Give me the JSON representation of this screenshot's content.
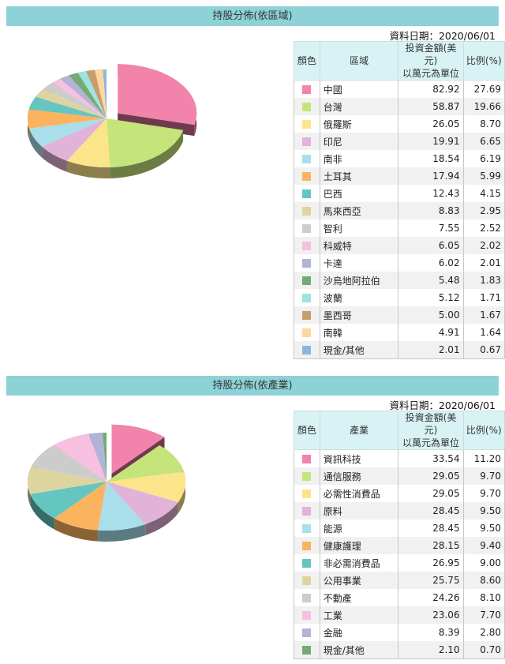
{
  "region_section": {
    "title": "持股分佈(依區域)",
    "date": "資料日期：2020/06/01",
    "headers": {
      "color": "顏色",
      "name": "區域",
      "amount_l1": "投資金額(美元)",
      "amount_l2": "以萬元為單位",
      "pct": "比例(%)"
    },
    "rows": [
      {
        "name": "中國",
        "amount": "82.92",
        "pct": "27.69",
        "color": "#f283ab"
      },
      {
        "name": "台灣",
        "amount": "58.87",
        "pct": "19.66",
        "color": "#c5e47b"
      },
      {
        "name": "俄羅斯",
        "amount": "26.05",
        "pct": "8.70",
        "color": "#fce48a"
      },
      {
        "name": "印尼",
        "amount": "19.91",
        "pct": "6.65",
        "color": "#e1b3d9"
      },
      {
        "name": "南非",
        "amount": "18.54",
        "pct": "6.19",
        "color": "#a8dfea"
      },
      {
        "name": "土耳其",
        "amount": "17.94",
        "pct": "5.99",
        "color": "#fbb35e"
      },
      {
        "name": "巴西",
        "amount": "12.43",
        "pct": "4.15",
        "color": "#64c5c1"
      },
      {
        "name": "馬來西亞",
        "amount": "8.83",
        "pct": "2.95",
        "color": "#ddd59f"
      },
      {
        "name": "智利",
        "amount": "7.55",
        "pct": "2.52",
        "color": "#cccccc"
      },
      {
        "name": "科威特",
        "amount": "6.05",
        "pct": "2.02",
        "color": "#f7bfe0"
      },
      {
        "name": "卡達",
        "amount": "6.02",
        "pct": "2.01",
        "color": "#b1b3d7"
      },
      {
        "name": "沙烏地阿拉伯",
        "amount": "5.48",
        "pct": "1.83",
        "color": "#73ab72"
      },
      {
        "name": "波蘭",
        "amount": "5.12",
        "pct": "1.71",
        "color": "#9ee3e0"
      },
      {
        "name": "墨西哥",
        "amount": "5.00",
        "pct": "1.67",
        "color": "#c99d6b"
      },
      {
        "name": "南韓",
        "amount": "4.91",
        "pct": "1.64",
        "color": "#fcd8a0"
      },
      {
        "name": "現金/其他",
        "amount": "2.01",
        "pct": "0.67",
        "color": "#8db6dc"
      }
    ]
  },
  "industry_section": {
    "title": "持股分佈(依產業)",
    "date": "資料日期：2020/06/01",
    "headers": {
      "color": "顏色",
      "name": "產業",
      "amount_l1": "投資金額(美元)",
      "amount_l2": "以萬元為單位",
      "pct": "比例(%)"
    },
    "rows": [
      {
        "name": "資訊科技",
        "amount": "33.54",
        "pct": "11.20",
        "color": "#f283ab"
      },
      {
        "name": "通信服務",
        "amount": "29.05",
        "pct": "9.70",
        "color": "#c5e47b"
      },
      {
        "name": "必需性消費品",
        "amount": "29.05",
        "pct": "9.70",
        "color": "#fce48a"
      },
      {
        "name": "原料",
        "amount": "28.45",
        "pct": "9.50",
        "color": "#e1b3d9"
      },
      {
        "name": "能源",
        "amount": "28.45",
        "pct": "9.50",
        "color": "#a8dfea"
      },
      {
        "name": "健康護理",
        "amount": "28.15",
        "pct": "9.40",
        "color": "#fbb35e"
      },
      {
        "name": "非必需消費品",
        "amount": "26.95",
        "pct": "9.00",
        "color": "#64c5c1"
      },
      {
        "name": "公用事業",
        "amount": "25.75",
        "pct": "8.60",
        "color": "#ddd59f"
      },
      {
        "name": "不動產",
        "amount": "24.26",
        "pct": "8.10",
        "color": "#cccccc"
      },
      {
        "name": "工業",
        "amount": "23.06",
        "pct": "7.70",
        "color": "#f7bfe0"
      },
      {
        "name": "金融",
        "amount": "8.39",
        "pct": "2.80",
        "color": "#b1b3d7"
      },
      {
        "name": "現金/其他",
        "amount": "2.10",
        "pct": "0.70",
        "color": "#73ab72"
      }
    ]
  },
  "chart_data": [
    {
      "type": "pie",
      "title": "持股分佈(依區域)",
      "categories": [
        "中國",
        "台灣",
        "俄羅斯",
        "印尼",
        "南非",
        "土耳其",
        "巴西",
        "馬來西亞",
        "智利",
        "科威特",
        "卡達",
        "沙烏地阿拉伯",
        "波蘭",
        "墨西哥",
        "南韓",
        "現金/其他"
      ],
      "values": [
        27.69,
        19.66,
        8.7,
        6.65,
        6.19,
        5.99,
        4.15,
        2.95,
        2.52,
        2.02,
        2.01,
        1.83,
        1.71,
        1.67,
        1.64,
        0.67
      ],
      "amounts": [
        82.92,
        58.87,
        26.05,
        19.91,
        18.54,
        17.94,
        12.43,
        8.83,
        7.55,
        6.05,
        6.02,
        5.48,
        5.12,
        5.0,
        4.91,
        2.01
      ],
      "exploded": "中國"
    },
    {
      "type": "pie",
      "title": "持股分佈(依產業)",
      "categories": [
        "資訊科技",
        "通信服務",
        "必需性消費品",
        "原料",
        "能源",
        "健康護理",
        "非必需消費品",
        "公用事業",
        "不動產",
        "工業",
        "金融",
        "現金/其他"
      ],
      "values": [
        11.2,
        9.7,
        9.7,
        9.5,
        9.5,
        9.4,
        9.0,
        8.6,
        8.1,
        7.7,
        2.8,
        0.7
      ],
      "amounts": [
        33.54,
        29.05,
        29.05,
        28.45,
        28.45,
        28.15,
        26.95,
        25.75,
        24.26,
        23.06,
        8.39,
        2.1
      ],
      "exploded": "資訊科技"
    }
  ]
}
